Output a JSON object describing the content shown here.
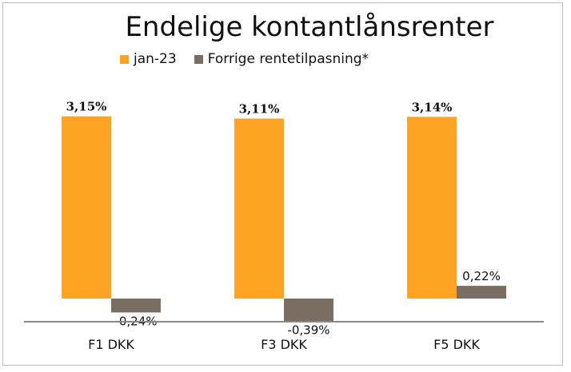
{
  "chart_data": {
    "type": "bar",
    "title": "Endelige kontantlånsrenter",
    "categories": [
      "F1 DKK",
      "F3 DKK",
      "F5 DKK"
    ],
    "series": [
      {
        "name": "jan-23",
        "color": "#FFA324",
        "values": [
          3.15,
          3.11,
          3.14
        ],
        "labels": [
          "3,15%",
          "3,11%",
          "3,14%"
        ]
      },
      {
        "name": "Forrige rentetilpasning*",
        "color": "#7A6E63",
        "values": [
          -0.24,
          -0.39,
          0.22
        ],
        "labels": [
          "-0,24%",
          "-0,39%",
          "0,22%"
        ]
      }
    ],
    "unit": "%",
    "ylim": [
      -0.4,
      3.6
    ],
    "grid": false,
    "legend_position": "top"
  }
}
